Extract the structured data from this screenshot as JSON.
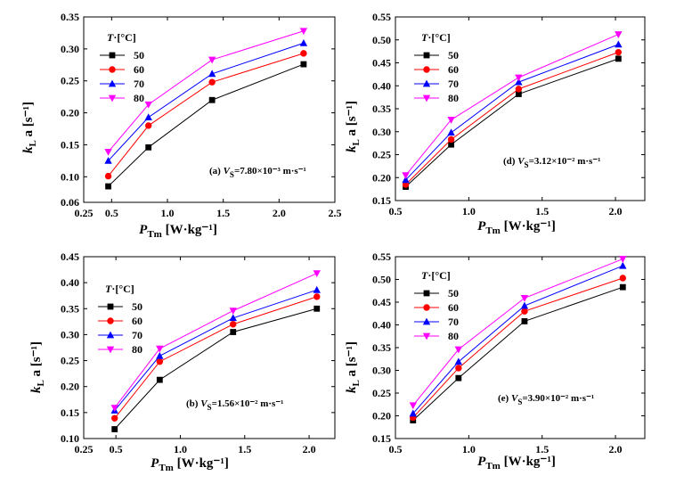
{
  "colors": {
    "50": "#000000",
    "60": "#ff0000",
    "70": "#0000ff",
    "80": "#ff00ff"
  },
  "markers": {
    "50": "square",
    "60": "circle",
    "70": "triangle-up",
    "80": "triangle-down"
  },
  "legend_title": "T·[°C]",
  "chart_data": [
    {
      "type": "line",
      "annotation": "(a) V_S=7.80×10⁻³ m·s⁻¹",
      "xlabel": "P_Tm [W·kg⁻¹]",
      "ylabel": "k_L a [s⁻¹]",
      "xlim": [
        0.25,
        2.5
      ],
      "ylim": [
        0.06,
        0.35
      ],
      "xticks": [
        "0.25",
        "0.5",
        "1.0",
        "1.5",
        "2.0",
        "2.5"
      ],
      "yticks": [
        "0.06",
        "0.10",
        "0.15",
        "0.20",
        "0.25",
        "0.30",
        "0.35"
      ],
      "x": [
        0.47,
        0.83,
        1.4,
        2.22
      ],
      "series": [
        {
          "name": "50",
          "values": [
            0.085,
            0.146,
            0.22,
            0.276
          ]
        },
        {
          "name": "60",
          "values": [
            0.101,
            0.18,
            0.248,
            0.293
          ]
        },
        {
          "name": "70",
          "values": [
            0.125,
            0.193,
            0.261,
            0.309
          ]
        },
        {
          "name": "80",
          "values": [
            0.139,
            0.213,
            0.283,
            0.328
          ]
        }
      ],
      "legend_position": "top-left",
      "grid": false
    },
    {
      "type": "line",
      "annotation": "(d) V_S=3.12×10⁻² m·s⁻¹",
      "xlabel": "P_Tm [W·kg⁻¹]",
      "ylabel": "k_L a [s⁻¹]",
      "xlim": [
        0.5,
        2.2
      ],
      "ylim": [
        0.15,
        0.55
      ],
      "xticks": [
        "0.5",
        "1.0",
        "1.5",
        "2.0"
      ],
      "yticks": [
        "0.15",
        "0.20",
        "0.25",
        "0.30",
        "0.35",
        "0.40",
        "0.45",
        "0.50",
        "0.55"
      ],
      "x": [
        0.57,
        0.88,
        1.34,
        2.02
      ],
      "series": [
        {
          "name": "50",
          "values": [
            0.18,
            0.272,
            0.382,
            0.459
          ]
        },
        {
          "name": "60",
          "values": [
            0.185,
            0.283,
            0.393,
            0.473
          ]
        },
        {
          "name": "70",
          "values": [
            0.195,
            0.298,
            0.408,
            0.49
          ]
        },
        {
          "name": "80",
          "values": [
            0.205,
            0.326,
            0.418,
            0.512
          ]
        }
      ],
      "legend_position": "top-left",
      "grid": false
    },
    {
      "type": "line",
      "annotation": "(b) V_S=1.56×10⁻² m·s⁻¹",
      "xlabel": "P_Tm [W·kg⁻¹]",
      "ylabel": "k_L a [s⁻¹]",
      "xlim": [
        0.25,
        2.2
      ],
      "ylim": [
        0.1,
        0.45
      ],
      "xticks": [
        "0.25",
        "0.5",
        "1.0",
        "1.5",
        "2.0"
      ],
      "yticks": [
        "0.10",
        "0.15",
        "0.20",
        "0.25",
        "0.30",
        "0.35",
        "0.40",
        "0.45"
      ],
      "x": [
        0.49,
        0.84,
        1.41,
        2.06
      ],
      "series": [
        {
          "name": "50",
          "values": [
            0.118,
            0.213,
            0.305,
            0.35
          ]
        },
        {
          "name": "60",
          "values": [
            0.139,
            0.248,
            0.32,
            0.373
          ]
        },
        {
          "name": "70",
          "values": [
            0.154,
            0.259,
            0.332,
            0.386
          ]
        },
        {
          "name": "80",
          "values": [
            0.159,
            0.273,
            0.346,
            0.418
          ]
        }
      ],
      "legend_position": "top-left",
      "grid": false
    },
    {
      "type": "line",
      "annotation": "(e) V_S=3.90×10⁻² m·s⁻¹",
      "xlabel": "P_Tm [W·kg⁻¹]",
      "ylabel": "k_L a [s⁻¹]",
      "xlim": [
        0.5,
        2.2
      ],
      "ylim": [
        0.15,
        0.55
      ],
      "xticks": [
        "0.5",
        "1.0",
        "1.5",
        "2.0"
      ],
      "yticks": [
        "0.15",
        "0.20",
        "0.25",
        "0.30",
        "0.35",
        "0.40",
        "0.45",
        "0.50",
        "0.55"
      ],
      "x": [
        0.62,
        0.93,
        1.38,
        2.05
      ],
      "series": [
        {
          "name": "50",
          "values": [
            0.19,
            0.283,
            0.408,
            0.483
          ]
        },
        {
          "name": "60",
          "values": [
            0.196,
            0.305,
            0.43,
            0.503
          ]
        },
        {
          "name": "70",
          "values": [
            0.205,
            0.319,
            0.442,
            0.53
          ]
        },
        {
          "name": "80",
          "values": [
            0.223,
            0.346,
            0.459,
            0.545
          ]
        }
      ],
      "legend_position": "top-left",
      "grid": false
    }
  ]
}
